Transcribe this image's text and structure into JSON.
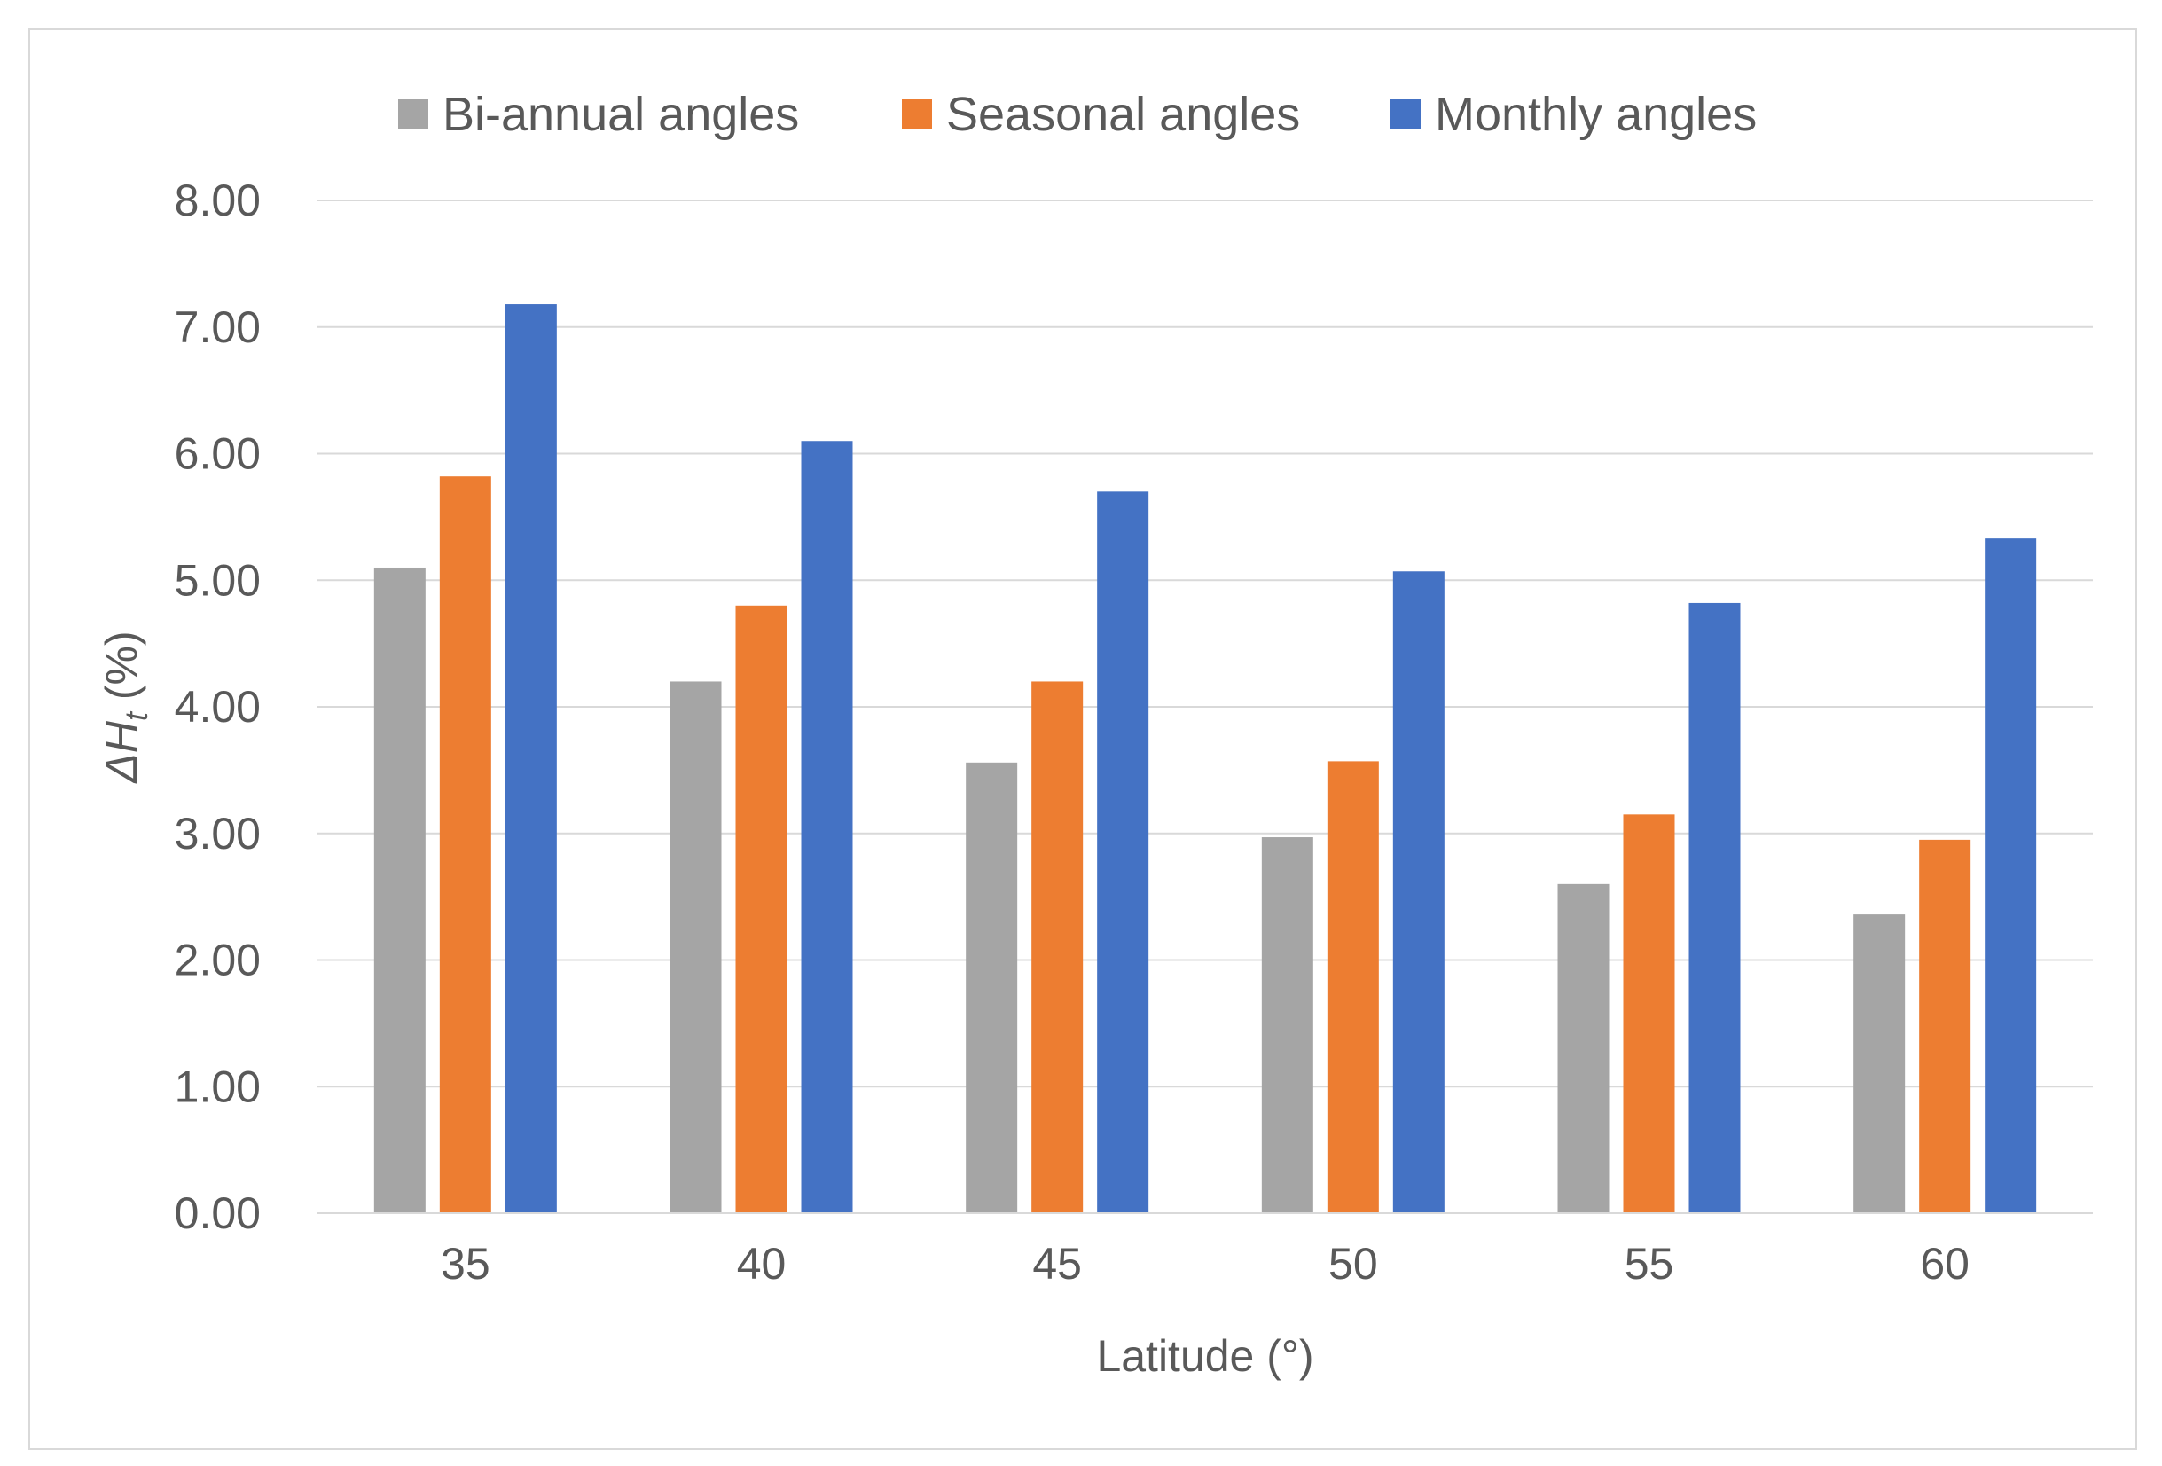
{
  "chart_data": {
    "type": "bar",
    "title": "",
    "xlabel": "Latitude (°)",
    "ylabel": {
      "prefix": "ΔH",
      "subscript": "t",
      "suffix": " (%)"
    },
    "categories": [
      "35",
      "40",
      "45",
      "50",
      "55",
      "60"
    ],
    "ylim": [
      0,
      8
    ],
    "yticks": [
      "0.00",
      "1.00",
      "2.00",
      "3.00",
      "4.00",
      "5.00",
      "6.00",
      "7.00",
      "8.00"
    ],
    "grid": true,
    "legend_position": "top",
    "series": [
      {
        "name": "Bi-annual angles",
        "color": "#a5a5a5",
        "values": [
          5.1,
          4.2,
          3.56,
          2.97,
          2.6,
          2.36
        ]
      },
      {
        "name": "Seasonal angles",
        "color": "#ed7d31",
        "values": [
          5.82,
          4.8,
          4.2,
          3.57,
          3.15,
          2.95
        ]
      },
      {
        "name": "Monthly angles",
        "color": "#4472c4",
        "values": [
          7.18,
          6.1,
          5.7,
          5.07,
          4.82,
          5.33
        ]
      }
    ]
  }
}
